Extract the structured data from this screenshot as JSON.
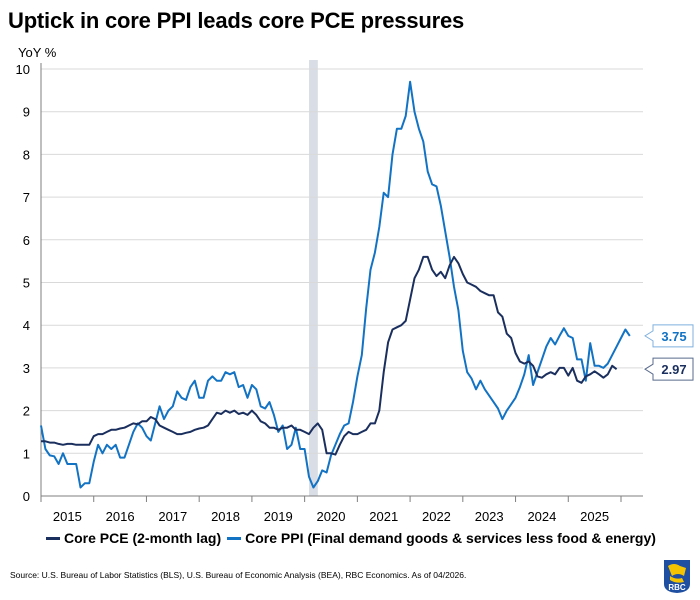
{
  "title": "Uptick in core PPI leads core PCE pressures",
  "source": "Source: U.S. Bureau of Labor Statistics (BLS), U.S. Bureau of Economic Analysis (BEA), RBC Economics. As of 04/2026.",
  "logo": {
    "name": "RBC",
    "text": "RBC"
  },
  "colors": {
    "pce": "#1b2f5e",
    "ppi": "#1273c4",
    "recession": "#d9dde6",
    "grid": "#d9d9d9",
    "axis": "#7f7f7f"
  },
  "chart_data": {
    "type": "line",
    "title": "Uptick in core PPI leads core PCE pressures",
    "ylabel": "YoY %",
    "xlabel": "",
    "ylim": [
      0,
      10
    ],
    "yticks": [
      "0",
      "1",
      "2",
      "3",
      "4",
      "5",
      "6",
      "7",
      "8",
      "9",
      "10"
    ],
    "xticks": [
      "2015",
      "2016",
      "2017",
      "2018",
      "2019",
      "2020",
      "2021",
      "2022",
      "2023",
      "2024",
      "2025"
    ],
    "x_start": "2015-01",
    "x_frequency": "monthly",
    "grid": true,
    "legend_position": "bottom",
    "shaded_regions": [
      {
        "label": "recession",
        "start": "2020-02",
        "end": "2020-04"
      }
    ],
    "series": [
      {
        "name": "Core PCE (2-month lag)",
        "color": "#1b2f5e",
        "end_label": "2.97",
        "values": [
          1.28,
          1.28,
          1.25,
          1.25,
          1.22,
          1.2,
          1.22,
          1.22,
          1.2,
          1.2,
          1.2,
          1.2,
          1.4,
          1.45,
          1.45,
          1.5,
          1.55,
          1.55,
          1.58,
          1.6,
          1.65,
          1.7,
          1.68,
          1.75,
          1.75,
          1.85,
          1.8,
          1.65,
          1.6,
          1.55,
          1.5,
          1.45,
          1.45,
          1.48,
          1.5,
          1.55,
          1.58,
          1.6,
          1.65,
          1.8,
          1.95,
          1.92,
          2.0,
          1.95,
          2.0,
          1.92,
          1.95,
          1.9,
          2.0,
          1.9,
          1.75,
          1.7,
          1.6,
          1.6,
          1.55,
          1.6,
          1.6,
          1.65,
          1.55,
          1.55,
          1.5,
          1.45,
          1.6,
          1.7,
          1.55,
          1.0,
          1.0,
          0.97,
          1.2,
          1.4,
          1.5,
          1.45,
          1.45,
          1.5,
          1.55,
          1.7,
          1.7,
          2.0,
          2.9,
          3.6,
          3.9,
          3.95,
          4.0,
          4.1,
          4.6,
          5.1,
          5.3,
          5.6,
          5.6,
          5.3,
          5.15,
          5.25,
          5.1,
          5.4,
          5.6,
          5.45,
          5.2,
          5.0,
          4.95,
          4.9,
          4.8,
          4.75,
          4.7,
          4.7,
          4.3,
          4.2,
          3.8,
          3.7,
          3.35,
          3.15,
          3.1,
          3.15,
          3.05,
          2.8,
          2.77,
          2.85,
          2.9,
          2.85,
          3.0,
          3.0,
          2.82,
          3.0,
          2.7,
          2.65,
          2.8,
          2.85,
          2.92,
          2.85,
          2.77,
          2.85,
          3.05,
          2.97
        ]
      },
      {
        "name": "Core PPI (Final demand goods & services less food & energy)",
        "color": "#1273c4",
        "end_label": "3.75",
        "values": [
          1.65,
          1.1,
          0.95,
          0.93,
          0.75,
          1.0,
          0.75,
          0.75,
          0.75,
          0.2,
          0.3,
          0.3,
          0.8,
          1.2,
          1.0,
          1.2,
          1.1,
          1.2,
          0.9,
          0.9,
          1.2,
          1.5,
          1.7,
          1.6,
          1.4,
          1.3,
          1.7,
          2.1,
          1.8,
          2.0,
          2.1,
          2.45,
          2.3,
          2.25,
          2.55,
          2.7,
          2.3,
          2.3,
          2.7,
          2.8,
          2.7,
          2.7,
          2.9,
          2.85,
          2.9,
          2.55,
          2.6,
          2.3,
          2.6,
          2.5,
          2.1,
          2.05,
          2.2,
          1.9,
          1.5,
          1.65,
          1.1,
          1.2,
          1.6,
          1.1,
          1.1,
          0.45,
          0.2,
          0.35,
          0.6,
          0.55,
          0.95,
          1.2,
          1.45,
          1.65,
          1.7,
          2.2,
          2.8,
          3.3,
          4.4,
          5.3,
          5.7,
          6.3,
          7.1,
          7.0,
          8.0,
          8.6,
          8.6,
          8.9,
          9.7,
          9.0,
          8.6,
          8.3,
          7.6,
          7.3,
          7.25,
          6.8,
          6.2,
          5.6,
          4.9,
          4.35,
          3.4,
          2.9,
          2.75,
          2.5,
          2.7,
          2.5,
          2.35,
          2.2,
          2.05,
          1.8,
          2.0,
          2.15,
          2.3,
          2.55,
          2.85,
          3.3,
          2.6,
          2.9,
          3.2,
          3.5,
          3.7,
          3.55,
          3.75,
          3.93,
          3.75,
          3.7,
          3.2,
          3.2,
          2.7,
          3.58,
          3.05,
          3.05,
          3.0,
          3.1,
          3.3,
          3.5,
          3.7,
          3.9,
          3.75
        ]
      }
    ]
  }
}
